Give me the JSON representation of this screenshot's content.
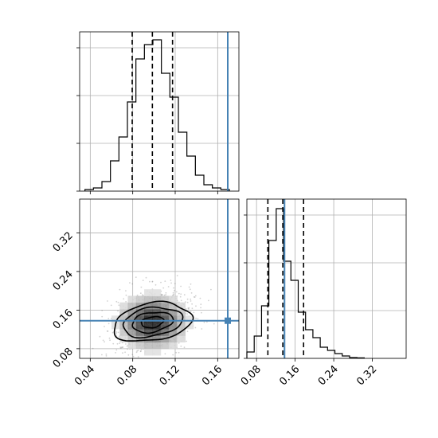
{
  "chart_data": {
    "type": "corner",
    "colors": {
      "histogram": "#000000",
      "truth": "#4682b4",
      "grid": "#b0b0b0",
      "contour": "#000000",
      "samples": "#7f7f7f"
    },
    "grid": true,
    "panels": {
      "p1_marginal": {
        "type": "histogram",
        "parameter_index": 0,
        "xlim": [
          0.03,
          0.18
        ],
        "ylim": [
          0,
          1.0
        ],
        "bins_left": [
          0.035,
          0.043,
          0.051,
          0.059,
          0.067,
          0.075,
          0.083,
          0.091,
          0.099,
          0.107,
          0.115,
          0.123,
          0.131,
          0.139,
          0.147,
          0.155,
          0.163
        ],
        "bin_width": 0.008,
        "counts": [
          0.01,
          0.02,
          0.06,
          0.19,
          0.34,
          0.56,
          0.83,
          0.92,
          0.95,
          0.74,
          0.59,
          0.37,
          0.22,
          0.1,
          0.04,
          0.02,
          0.01
        ],
        "quantiles": [
          0.0795,
          0.0985,
          0.1175
        ],
        "truth": 0.1695,
        "ytick_values": [
          0,
          0.3,
          0.6,
          0.9
        ]
      },
      "joint": {
        "type": "scatter_contour",
        "xlim": [
          0.03,
          0.18
        ],
        "ylim": [
          0.06,
          0.39
        ],
        "x_ticks": [
          "0.04",
          "0.08",
          "0.12",
          "0.16"
        ],
        "x_tick_values": [
          0.04,
          0.08,
          0.12,
          0.16
        ],
        "y_ticks": [
          "0.08",
          "0.16",
          "0.24",
          "0.32"
        ],
        "y_tick_values": [
          0.08,
          0.16,
          0.24,
          0.32
        ],
        "center": [
          0.0985,
          0.135
        ],
        "spread": [
          0.0175,
          0.031
        ],
        "contour_radii": [
          0.6,
          1.1,
          1.6,
          2.1
        ],
        "truth": [
          0.1695,
          0.138
        ]
      },
      "p2_marginal": {
        "type": "histogram",
        "parameter_index": 1,
        "xlim": [
          0.06,
          0.39
        ],
        "ylim": [
          0,
          1.0
        ],
        "bins_left": [
          0.06,
          0.0752,
          0.0904,
          0.1056,
          0.1208,
          0.136,
          0.1512,
          0.1664,
          0.1816,
          0.1968,
          0.212,
          0.2272,
          0.2424,
          0.2576,
          0.2728,
          0.288
        ],
        "bin_width": 0.0152,
        "counts": [
          0.04,
          0.14,
          0.33,
          0.74,
          0.94,
          0.61,
          0.49,
          0.29,
          0.18,
          0.13,
          0.07,
          0.05,
          0.03,
          0.015,
          0.005,
          0.003
        ],
        "quantiles": [
          0.1035,
          0.1345,
          0.1775
        ],
        "truth": 0.138,
        "x_ticks": [
          "0.08",
          "0.16",
          "0.24",
          "0.32"
        ],
        "x_tick_values": [
          0.08,
          0.16,
          0.24,
          0.32
        ],
        "ytick_values": [
          0,
          0.3,
          0.6,
          0.9
        ]
      }
    }
  }
}
